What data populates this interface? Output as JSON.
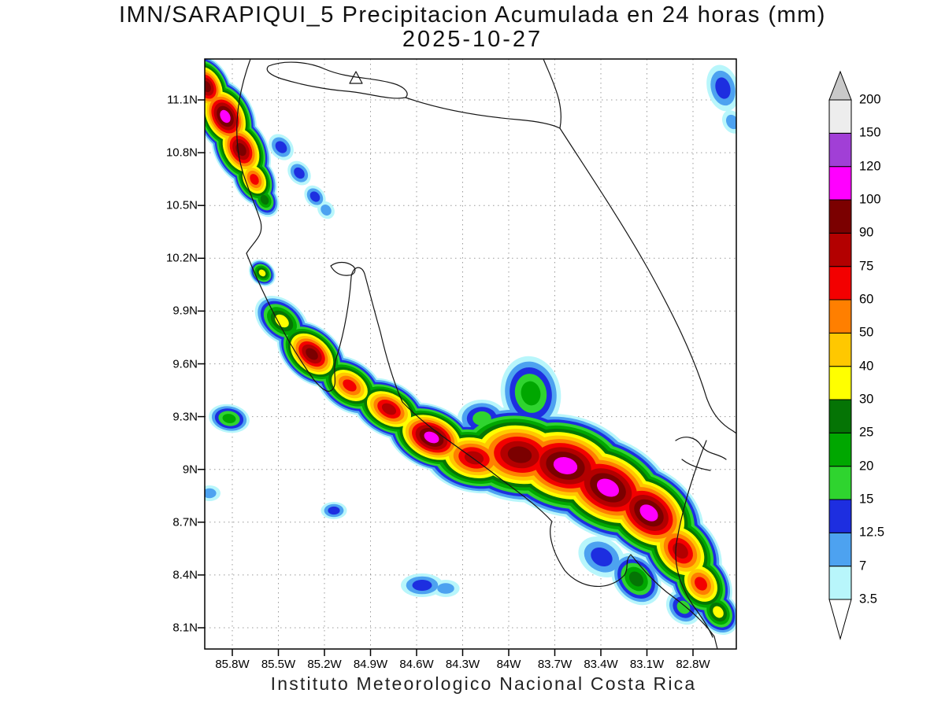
{
  "title": {
    "line1": "IMN/SARAPIQUI_5 Precipitacion Acumulada en 24 horas (mm)",
    "line2": "2025-10-27"
  },
  "footer": {
    "text": "Instituto Meteorologico Nacional Costa Rica"
  },
  "axes": {
    "lat_ticks": [
      "11.1N",
      "10.8N",
      "10.5N",
      "10.2N",
      "9.9N",
      "9.6N",
      "9.3N",
      "9N",
      "8.7N",
      "8.4N",
      "8.1N"
    ],
    "lon_ticks": [
      "85.8W",
      "85.5W",
      "85.2W",
      "84.9W",
      "84.6W",
      "84.3W",
      "84W",
      "83.7W",
      "83.4W",
      "83.1W",
      "82.8W"
    ]
  },
  "colorbar": {
    "tick_labels_top_to_bottom": [
      "200",
      "150",
      "120",
      "100",
      "90",
      "75",
      "60",
      "50",
      "40",
      "30",
      "25",
      "20",
      "15",
      "12.5",
      "7",
      "3.5"
    ],
    "segment_colors_bottom_to_top": [
      "#b8f6fb",
      "#4da2f0",
      "#1d2ee0",
      "#2fd42f",
      "#00a700",
      "#057405",
      "#ffff00",
      "#ffc800",
      "#ff7f00",
      "#f30000",
      "#b30000",
      "#7b0000",
      "#ff00ff",
      "#a13fd6",
      "#ededed"
    ],
    "over_arrow_color": "#c9c9c9",
    "under_arrow_color": "#ffffff"
  },
  "chart_data": {
    "type": "heatmap",
    "subtype": "filled-contour-precipitation-map",
    "title": "IMN/SARAPIQUI_5 Precipitacion Acumulada en 24 horas (mm)",
    "date": "2025-10-27",
    "variable": "Precipitacion Acumulada en 24 horas",
    "units": "mm",
    "source_caption": "Instituto Meteorologico Nacional Costa Rica",
    "contour_levels_mm": [
      3.5,
      7,
      12.5,
      15,
      20,
      25,
      30,
      40,
      50,
      60,
      75,
      90,
      100,
      120,
      150,
      200
    ],
    "lat_tick_labels": [
      "11.1N",
      "10.8N",
      "10.5N",
      "10.2N",
      "9.9N",
      "9.6N",
      "9.3N",
      "9N",
      "8.7N",
      "8.4N",
      "8.1N"
    ],
    "lon_tick_labels": [
      "85.8W",
      "85.5W",
      "85.2W",
      "84.9W",
      "84.6W",
      "84.3W",
      "84W",
      "83.7W",
      "83.4W",
      "83.1W",
      "82.8W"
    ],
    "legend_position": "right",
    "grid": "dotted",
    "features": [
      "intense band of precipitation (up to 100-150 mm) along Pacific slope from 85.3W,9.7N to 82.8W,8.2N",
      "intense cell (up to 100-150 mm) in northwest Guanacaste near 85.7W,11.0N",
      "scattered light showers (3.5-15 mm) elsewhere"
    ]
  }
}
